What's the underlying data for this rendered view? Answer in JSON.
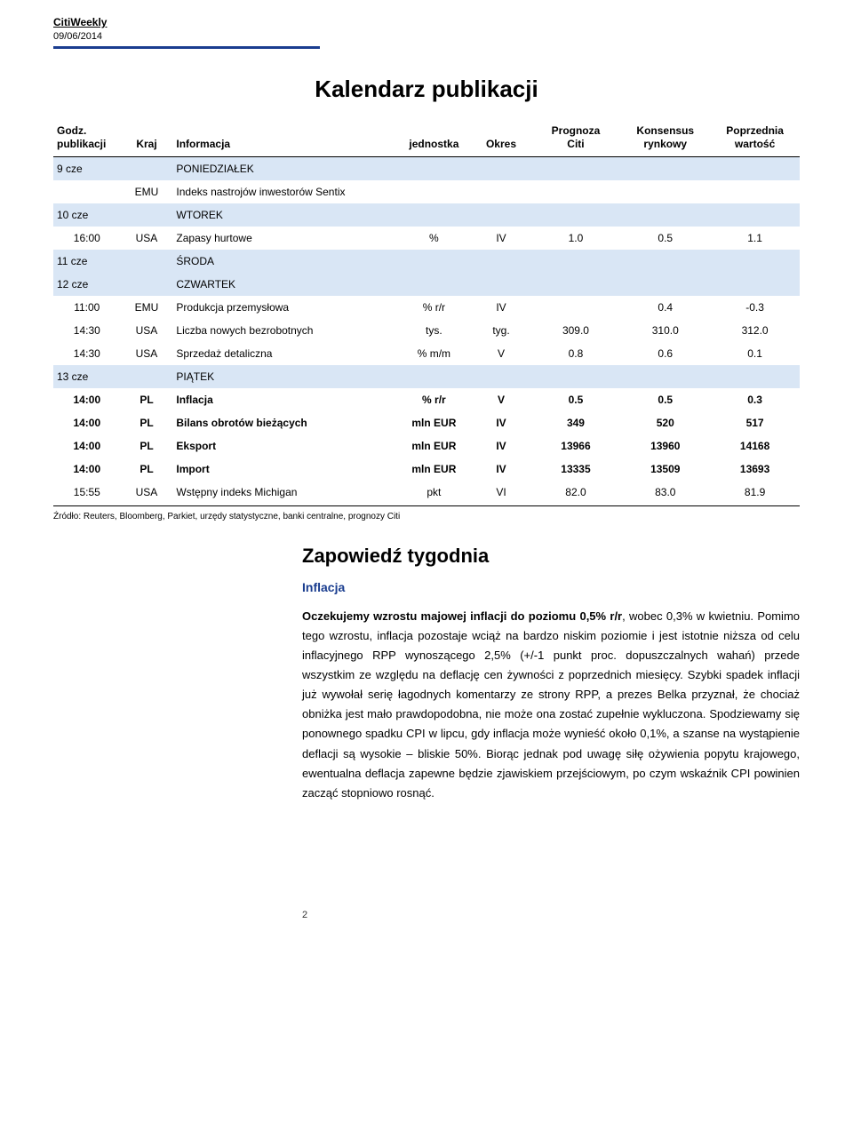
{
  "header": {
    "brand": "CitiWeekly",
    "date": "09/06/2014",
    "rule_color": "#1a3d8f"
  },
  "title": "Kalendarz publikacji",
  "table": {
    "columns": [
      "Godz.\npublikacji",
      "Kraj",
      "Informacja",
      "jednostka",
      "Okres",
      "Prognoza\nCiti",
      "Konsensus\nrynkowy",
      "Poprzednia\nwartość"
    ],
    "col_widths": [
      "9%",
      "7%",
      "30%",
      "10%",
      "8%",
      "12%",
      "12%",
      "12%"
    ],
    "rows": [
      {
        "type": "day",
        "date": "9 cze",
        "label": "PONIEDZIAŁEK"
      },
      {
        "type": "data",
        "cells": [
          "",
          "EMU",
          "Indeks nastrojów inwestorów Sentix",
          "",
          "",
          "",
          "",
          ""
        ]
      },
      {
        "type": "day",
        "date": "10 cze",
        "label": "WTOREK"
      },
      {
        "type": "data",
        "cells": [
          "16:00",
          "USA",
          "Zapasy hurtowe",
          "%",
          "IV",
          "1.0",
          "0.5",
          "1.1"
        ]
      },
      {
        "type": "day",
        "date": "11 cze",
        "label": "ŚRODA"
      },
      {
        "type": "day",
        "date": "12 cze",
        "label": "CZWARTEK"
      },
      {
        "type": "data",
        "cells": [
          "11:00",
          "EMU",
          "Produkcja przemysłowa",
          "% r/r",
          "IV",
          "",
          "0.4",
          "-0.3"
        ]
      },
      {
        "type": "data",
        "cells": [
          "14:30",
          "USA",
          "Liczba nowych bezrobotnych",
          "tys.",
          "tyg.",
          "309.0",
          "310.0",
          "312.0"
        ]
      },
      {
        "type": "data",
        "cells": [
          "14:30",
          "USA",
          "Sprzedaż detaliczna",
          "% m/m",
          "V",
          "0.8",
          "0.6",
          "0.1"
        ]
      },
      {
        "type": "day",
        "date": "13 cze",
        "label": "PIĄTEK"
      },
      {
        "type": "data",
        "bold": true,
        "cells": [
          "14:00",
          "PL",
          "Inflacja",
          "% r/r",
          "V",
          "0.5",
          "0.5",
          "0.3"
        ]
      },
      {
        "type": "data",
        "bold": true,
        "cells": [
          "14:00",
          "PL",
          "Bilans obrotów bieżących",
          "mln EUR",
          "IV",
          "349",
          "520",
          "517"
        ]
      },
      {
        "type": "data",
        "bold": true,
        "cells": [
          "14:00",
          "PL",
          "Eksport",
          "mln EUR",
          "IV",
          "13966",
          "13960",
          "14168"
        ]
      },
      {
        "type": "data",
        "bold": true,
        "cells": [
          "14:00",
          "PL",
          "Import",
          "mln EUR",
          "IV",
          "13335",
          "13509",
          "13693"
        ]
      },
      {
        "type": "data",
        "cells": [
          "15:55",
          "USA",
          "Wstępny indeks Michigan",
          "pkt",
          "VI",
          "82.0",
          "83.0",
          "81.9"
        ]
      }
    ],
    "day_bg": "#d9e6f5"
  },
  "source_note": "Źródło: Reuters, Bloomberg, Parkiet, urzędy statystyczne, banki centralne, prognozy Citi",
  "section": {
    "title": "Zapowiedź tygodnia",
    "subhead": "Inflacja",
    "lead": "Oczekujemy wzrostu majowej inflacji do poziomu 0,5% r/r",
    "body": ", wobec 0,3% w kwietniu. Pomimo tego wzrostu, inflacja pozostaje wciąż na bardzo niskim poziomie i jest istotnie niższa od celu inflacyjnego RPP wynoszącego 2,5% (+/-1 punkt proc. dopuszczalnych wahań) przede wszystkim ze względu na deflację cen żywności z poprzednich miesięcy. Szybki spadek inflacji już wywołał serię łagodnych komentarzy ze strony RPP, a prezes Belka przyznał, że chociaż obniżka jest mało prawdopodobna, nie może ona zostać zupełnie wykluczona. Spodziewamy się ponownego spadku CPI w lipcu, gdy inflacja może wynieść około 0,1%, a szanse na wystąpienie deflacji są wysokie – bliskie 50%. Biorąc jednak pod uwagę siłę ożywienia popytu krajowego, ewentualna deflacja zapewne będzie zjawiskiem przejściowym, po czym wskaźnik CPI powinien zacząć stopniowo rosnąć."
  },
  "page_number": "2"
}
